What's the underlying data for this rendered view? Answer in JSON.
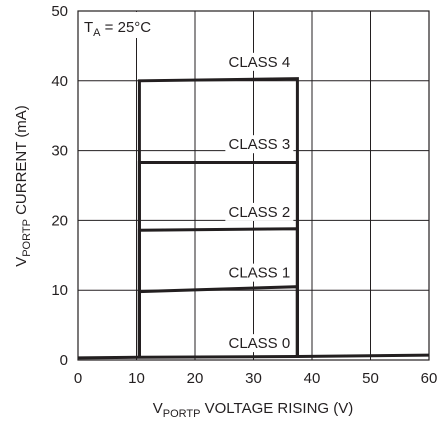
{
  "chart_data": {
    "type": "line",
    "annotation": {
      "main": "T",
      "sub": "A",
      "rest": " = 25°C"
    },
    "xlabel": {
      "main": "V",
      "sub": "PORTP",
      "rest": " VOLTAGE RISING (V)"
    },
    "ylabel": {
      "main": "V",
      "sub": "PORTP",
      "rest": " CURRENT (mA)"
    },
    "xlim": [
      0,
      60
    ],
    "ylim": [
      0,
      50
    ],
    "xticks": [
      0,
      10,
      20,
      30,
      40,
      50,
      60
    ],
    "yticks": [
      0,
      10,
      20,
      30,
      40,
      50
    ],
    "grid": true,
    "series": [
      {
        "name": "CLASS 0",
        "points": [
          [
            0,
            0.3
          ],
          [
            10.5,
            0.4
          ],
          [
            37.5,
            0.5
          ],
          [
            60,
            0.7
          ]
        ],
        "label_at": [
          31,
          1.7
        ]
      },
      {
        "name": "CLASS 1",
        "points": [
          [
            10.5,
            0.4
          ],
          [
            10.5,
            9.8
          ],
          [
            37.5,
            10.5
          ],
          [
            37.5,
            0.5
          ]
        ],
        "label_at": [
          31,
          11.8
        ]
      },
      {
        "name": "CLASS 2",
        "points": [
          [
            10.5,
            0.4
          ],
          [
            10.5,
            18.6
          ],
          [
            37.5,
            18.8
          ],
          [
            37.5,
            0.5
          ]
        ],
        "label_at": [
          31,
          20.5
        ]
      },
      {
        "name": "CLASS 3",
        "points": [
          [
            10.5,
            0.4
          ],
          [
            10.5,
            28.3
          ],
          [
            37.5,
            28.3
          ],
          [
            37.5,
            0.5
          ]
        ],
        "label_at": [
          31,
          30.2
        ]
      },
      {
        "name": "CLASS 4",
        "points": [
          [
            10.5,
            0.4
          ],
          [
            10.5,
            40.0
          ],
          [
            37.5,
            40.3
          ],
          [
            37.5,
            0.5
          ]
        ],
        "label_at": [
          31,
          42.0
        ]
      }
    ],
    "colors": {
      "line": "#231f20",
      "grid": "#231f20",
      "label_bg": "#ffffff"
    }
  }
}
